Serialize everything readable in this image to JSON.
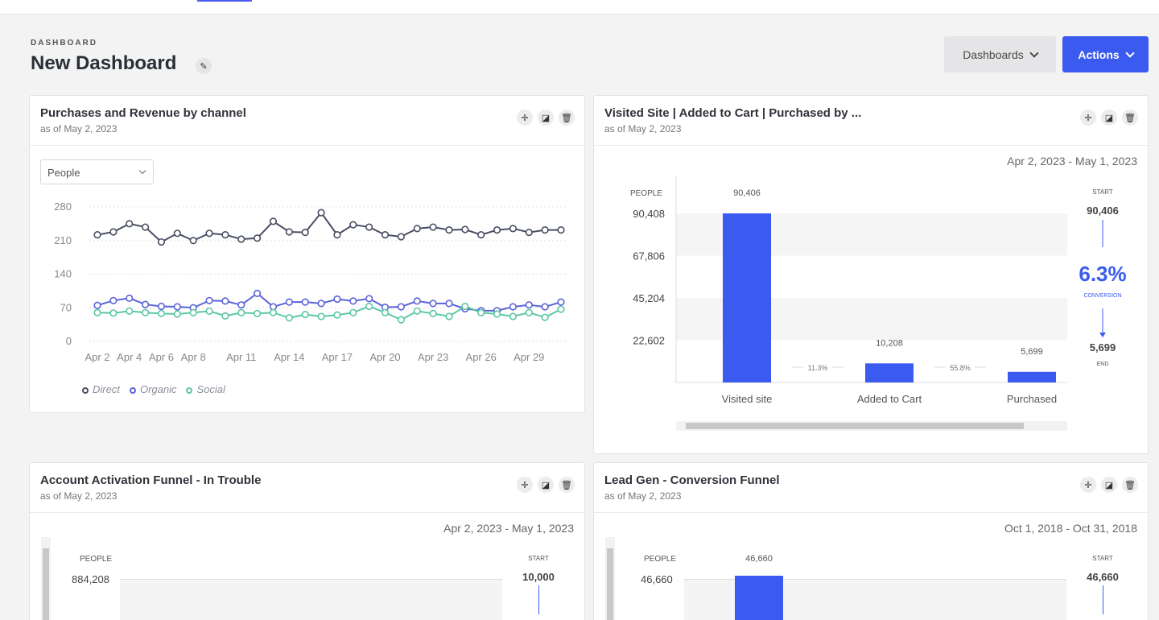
{
  "header": {
    "eyebrow": "DASHBOARD",
    "title": "New Dashboard",
    "dashboards_label": "Dashboards",
    "actions_label": "Actions"
  },
  "cards": {
    "purchases": {
      "title": "Purchases and Revenue by channel",
      "subtitle": "as of May 2, 2023",
      "select_value": "People",
      "legend": [
        "Direct",
        "Organic",
        "Social"
      ]
    },
    "visited": {
      "title": "Visited Site | Added to Cart | Purchased by ...",
      "subtitle": "as of May 2, 2023",
      "date_range": "Apr 2, 2023 - May 1, 2023",
      "axis_label": "PEOPLE",
      "start_label": "START",
      "start_value": "90,406",
      "conversion": "6.3%",
      "conversion_label": "CONVERSION",
      "end_value": "5,699",
      "end_label": "END",
      "step_rates": [
        "11.3%",
        "55.8%"
      ]
    },
    "activation": {
      "title": "Account Activation Funnel - In Trouble",
      "subtitle": "as of May 2, 2023",
      "date_range": "Apr 2, 2023 - May 1, 2023",
      "axis_label": "PEOPLE",
      "ytick": "884,208",
      "start_label": "START",
      "start_value": "10,000"
    },
    "leadgen": {
      "title": "Lead Gen - Conversion Funnel",
      "subtitle": "as of May 2, 2023",
      "date_range": "Oct 1, 2018 - Oct 31, 2018",
      "axis_label": "PEOPLE",
      "ytick": "46,660",
      "bar_label": "46,660",
      "start_label": "START",
      "start_value": "46,660"
    }
  },
  "colors": {
    "accent": "#3b5bf0",
    "direct": "#4a4e63",
    "organic": "#5b63d6",
    "social": "#5cc7a4"
  },
  "chart_data": [
    {
      "type": "line",
      "title": "Purchases and Revenue by channel",
      "ylim": [
        0,
        280
      ],
      "yticks": [
        0,
        70,
        140,
        210,
        280
      ],
      "xticks": [
        "Apr 2",
        "Apr 4",
        "Apr 6",
        "Apr 8",
        "Apr 11",
        "Apr 14",
        "Apr 17",
        "Apr 20",
        "Apr 23",
        "Apr 26",
        "Apr 29"
      ],
      "x": [
        2,
        3,
        4,
        5,
        6,
        7,
        8,
        9,
        10,
        11,
        12,
        13,
        14,
        15,
        16,
        17,
        18,
        19,
        20,
        21,
        22,
        23,
        24,
        25,
        26,
        27,
        28,
        29,
        30,
        31
      ],
      "series": [
        {
          "name": "Direct",
          "values": [
            222,
            228,
            245,
            238,
            207,
            225,
            210,
            225,
            222,
            213,
            215,
            250,
            228,
            227,
            268,
            222,
            243,
            238,
            222,
            218,
            235,
            238,
            232,
            233,
            222,
            232,
            235,
            227,
            232,
            232
          ]
        },
        {
          "name": "Organic",
          "values": [
            75,
            85,
            90,
            77,
            73,
            72,
            70,
            85,
            84,
            76,
            100,
            72,
            82,
            82,
            79,
            88,
            84,
            89,
            71,
            72,
            84,
            79,
            79,
            68,
            64,
            64,
            72,
            76,
            72,
            82
          ]
        },
        {
          "name": "Social",
          "values": [
            60,
            59,
            63,
            60,
            58,
            57,
            60,
            63,
            53,
            60,
            58,
            60,
            49,
            56,
            52,
            55,
            60,
            73,
            60,
            45,
            63,
            58,
            52,
            73,
            60,
            57,
            52,
            60,
            50,
            67
          ]
        }
      ]
    },
    {
      "type": "bar",
      "title": "Visited Site | Added to Cart | Purchased by ...",
      "categories": [
        "Visited site",
        "Added to Cart",
        "Purchased"
      ],
      "values": [
        90406,
        10208,
        5699
      ],
      "value_labels": [
        "90,406",
        "10,208",
        "5,699"
      ],
      "ylabel": "PEOPLE",
      "yticks": [
        "90,408",
        "67,806",
        "45,204",
        "22,602"
      ],
      "ylim": [
        0,
        90408
      ]
    },
    {
      "type": "bar",
      "title": "Lead Gen - Conversion Funnel",
      "categories": [
        ""
      ],
      "values": [
        46660
      ],
      "ylabel": "PEOPLE",
      "ylim": [
        0,
        46660
      ]
    }
  ]
}
